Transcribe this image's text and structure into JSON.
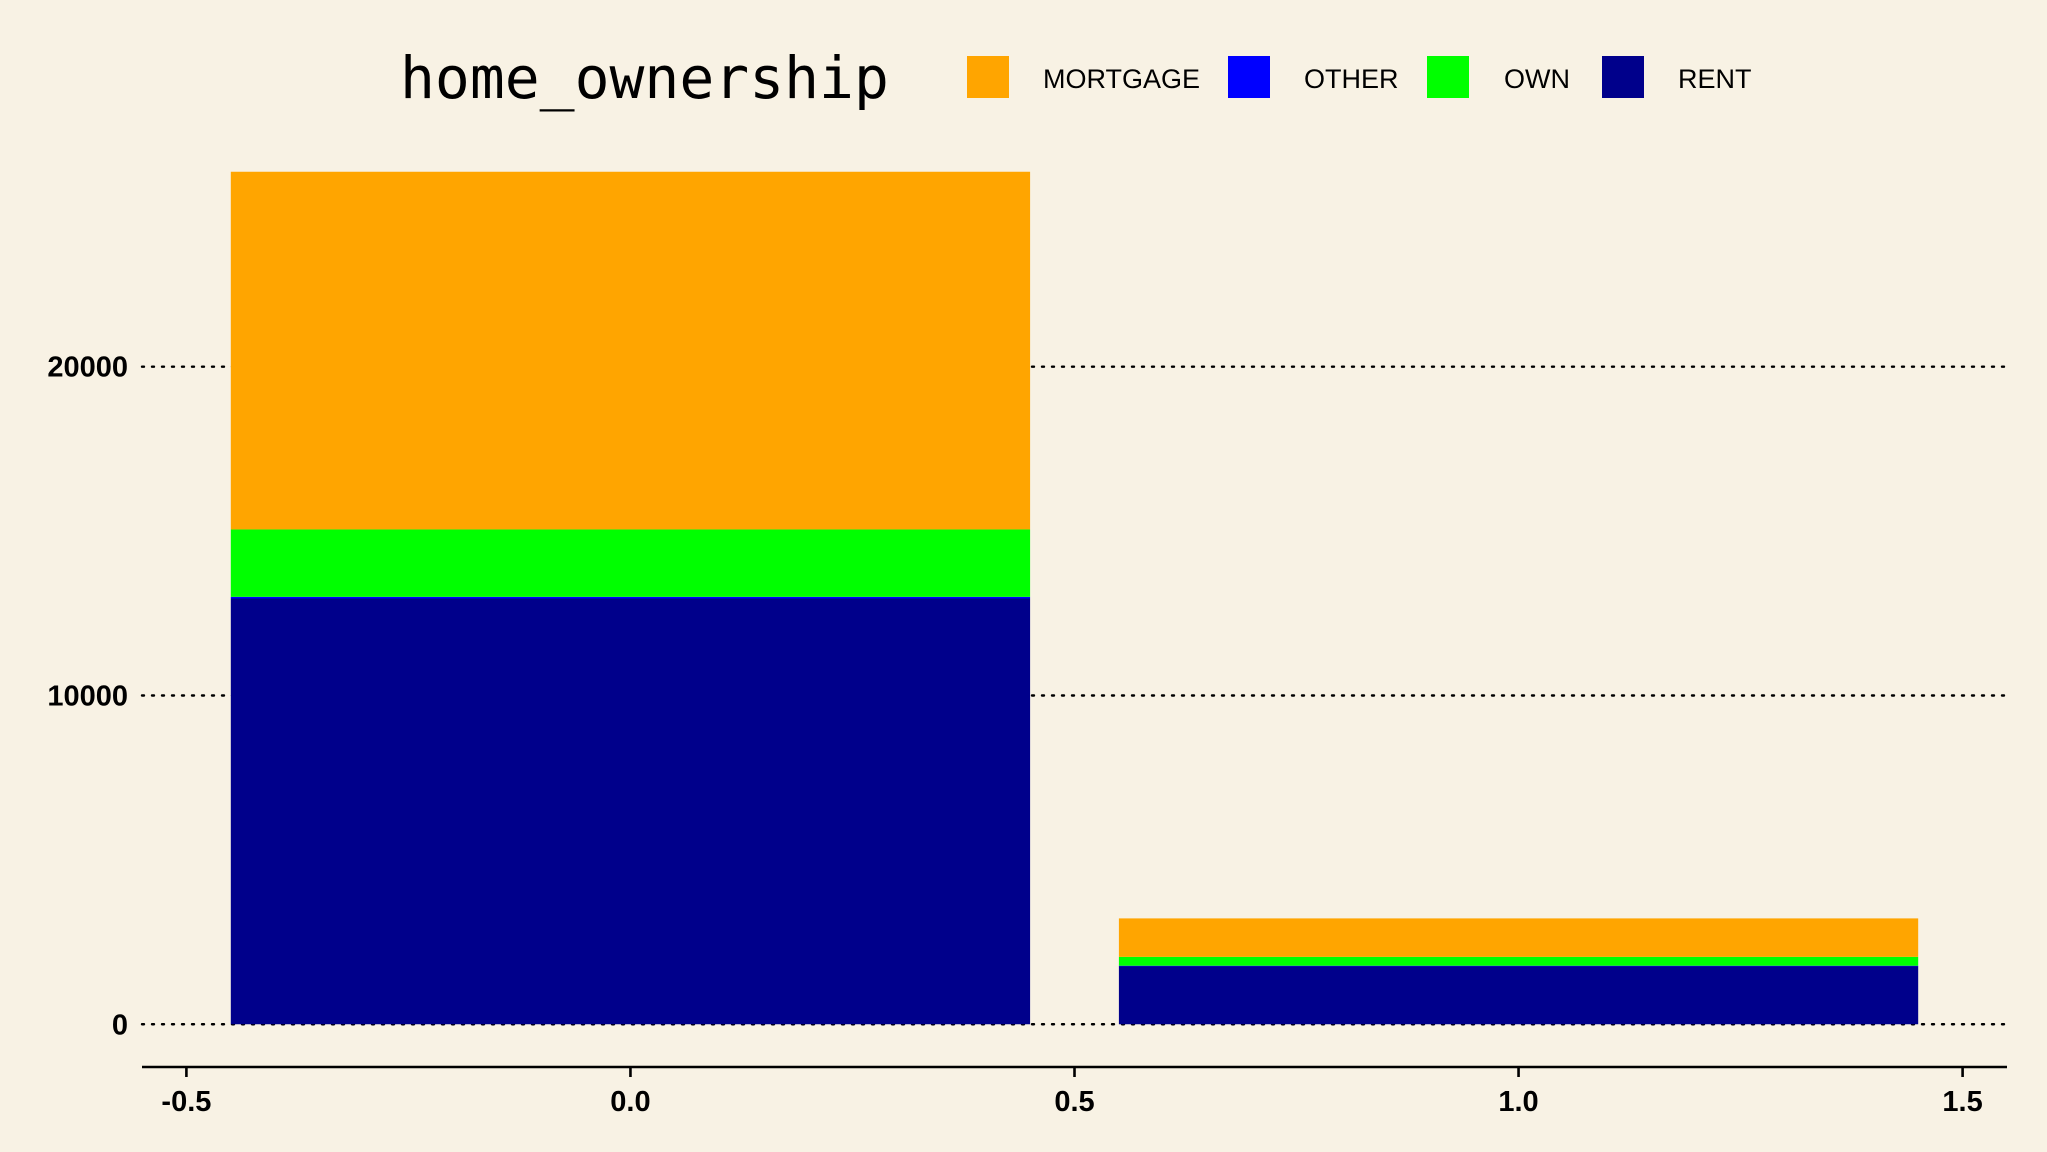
{
  "chart_data": {
    "type": "bar",
    "stacked": true,
    "title": "",
    "xlabel": "",
    "ylabel": "",
    "categories": [
      0,
      1
    ],
    "series": [
      {
        "name": "RENT",
        "color": "#00008b",
        "values": [
          12950,
          1770
        ]
      },
      {
        "name": "OTHER",
        "color": "#0000ff",
        "values": [
          50,
          10
        ]
      },
      {
        "name": "OWN",
        "color": "#00ff00",
        "values": [
          2050,
          270
        ]
      },
      {
        "name": "MORTGAGE",
        "color": "#ffa500",
        "values": [
          10880,
          1170
        ]
      }
    ],
    "xlim": [
      -0.55,
      1.55
    ],
    "ylim": [
      -1300,
      27200
    ],
    "xticks": [
      -0.5,
      0.0,
      0.5,
      1.0,
      1.5
    ],
    "xtick_labels": [
      "-0.5",
      "0.0",
      "0.5",
      "1.0",
      "1.5"
    ],
    "yticks": [
      0,
      10000,
      20000
    ],
    "ytick_labels": [
      "0",
      "10000",
      "20000"
    ],
    "grid": "horizontal-dotted",
    "legend": {
      "title": "home_ownership",
      "position": "top",
      "entries": [
        {
          "label": "MORTGAGE",
          "color": "#ffa500"
        },
        {
          "label": "OTHER",
          "color": "#0000ff"
        },
        {
          "label": "OWN",
          "color": "#00ff00"
        },
        {
          "label": "RENT",
          "color": "#00008b"
        }
      ]
    },
    "background_color": "#f8f2e4"
  }
}
